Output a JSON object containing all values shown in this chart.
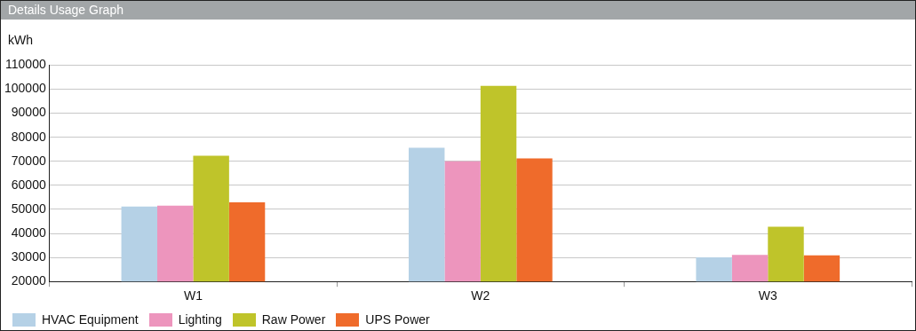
{
  "chart_data": {
    "type": "bar",
    "title": "Details Usage Graph",
    "ylabel": "kWh",
    "categories": [
      "W1",
      "W2",
      "W3"
    ],
    "series": [
      {
        "name": "HVAC Equipment",
        "color": "#b5d1e6",
        "values": [
          51200,
          75600,
          30000
        ]
      },
      {
        "name": "Lighting",
        "color": "#ed95bd",
        "values": [
          51500,
          70000,
          31100
        ]
      },
      {
        "name": "Raw Power",
        "color": "#bfc42a",
        "values": [
          72300,
          101400,
          42800
        ]
      },
      {
        "name": "UPS Power",
        "color": "#ef6b2b",
        "values": [
          52900,
          71200,
          30900
        ]
      }
    ],
    "ylim": [
      20000,
      110000
    ],
    "yticks": [
      20000,
      30000,
      40000,
      50000,
      60000,
      70000,
      80000,
      90000,
      100000,
      110000
    ],
    "grid": "y",
    "legend": "bottom left"
  }
}
